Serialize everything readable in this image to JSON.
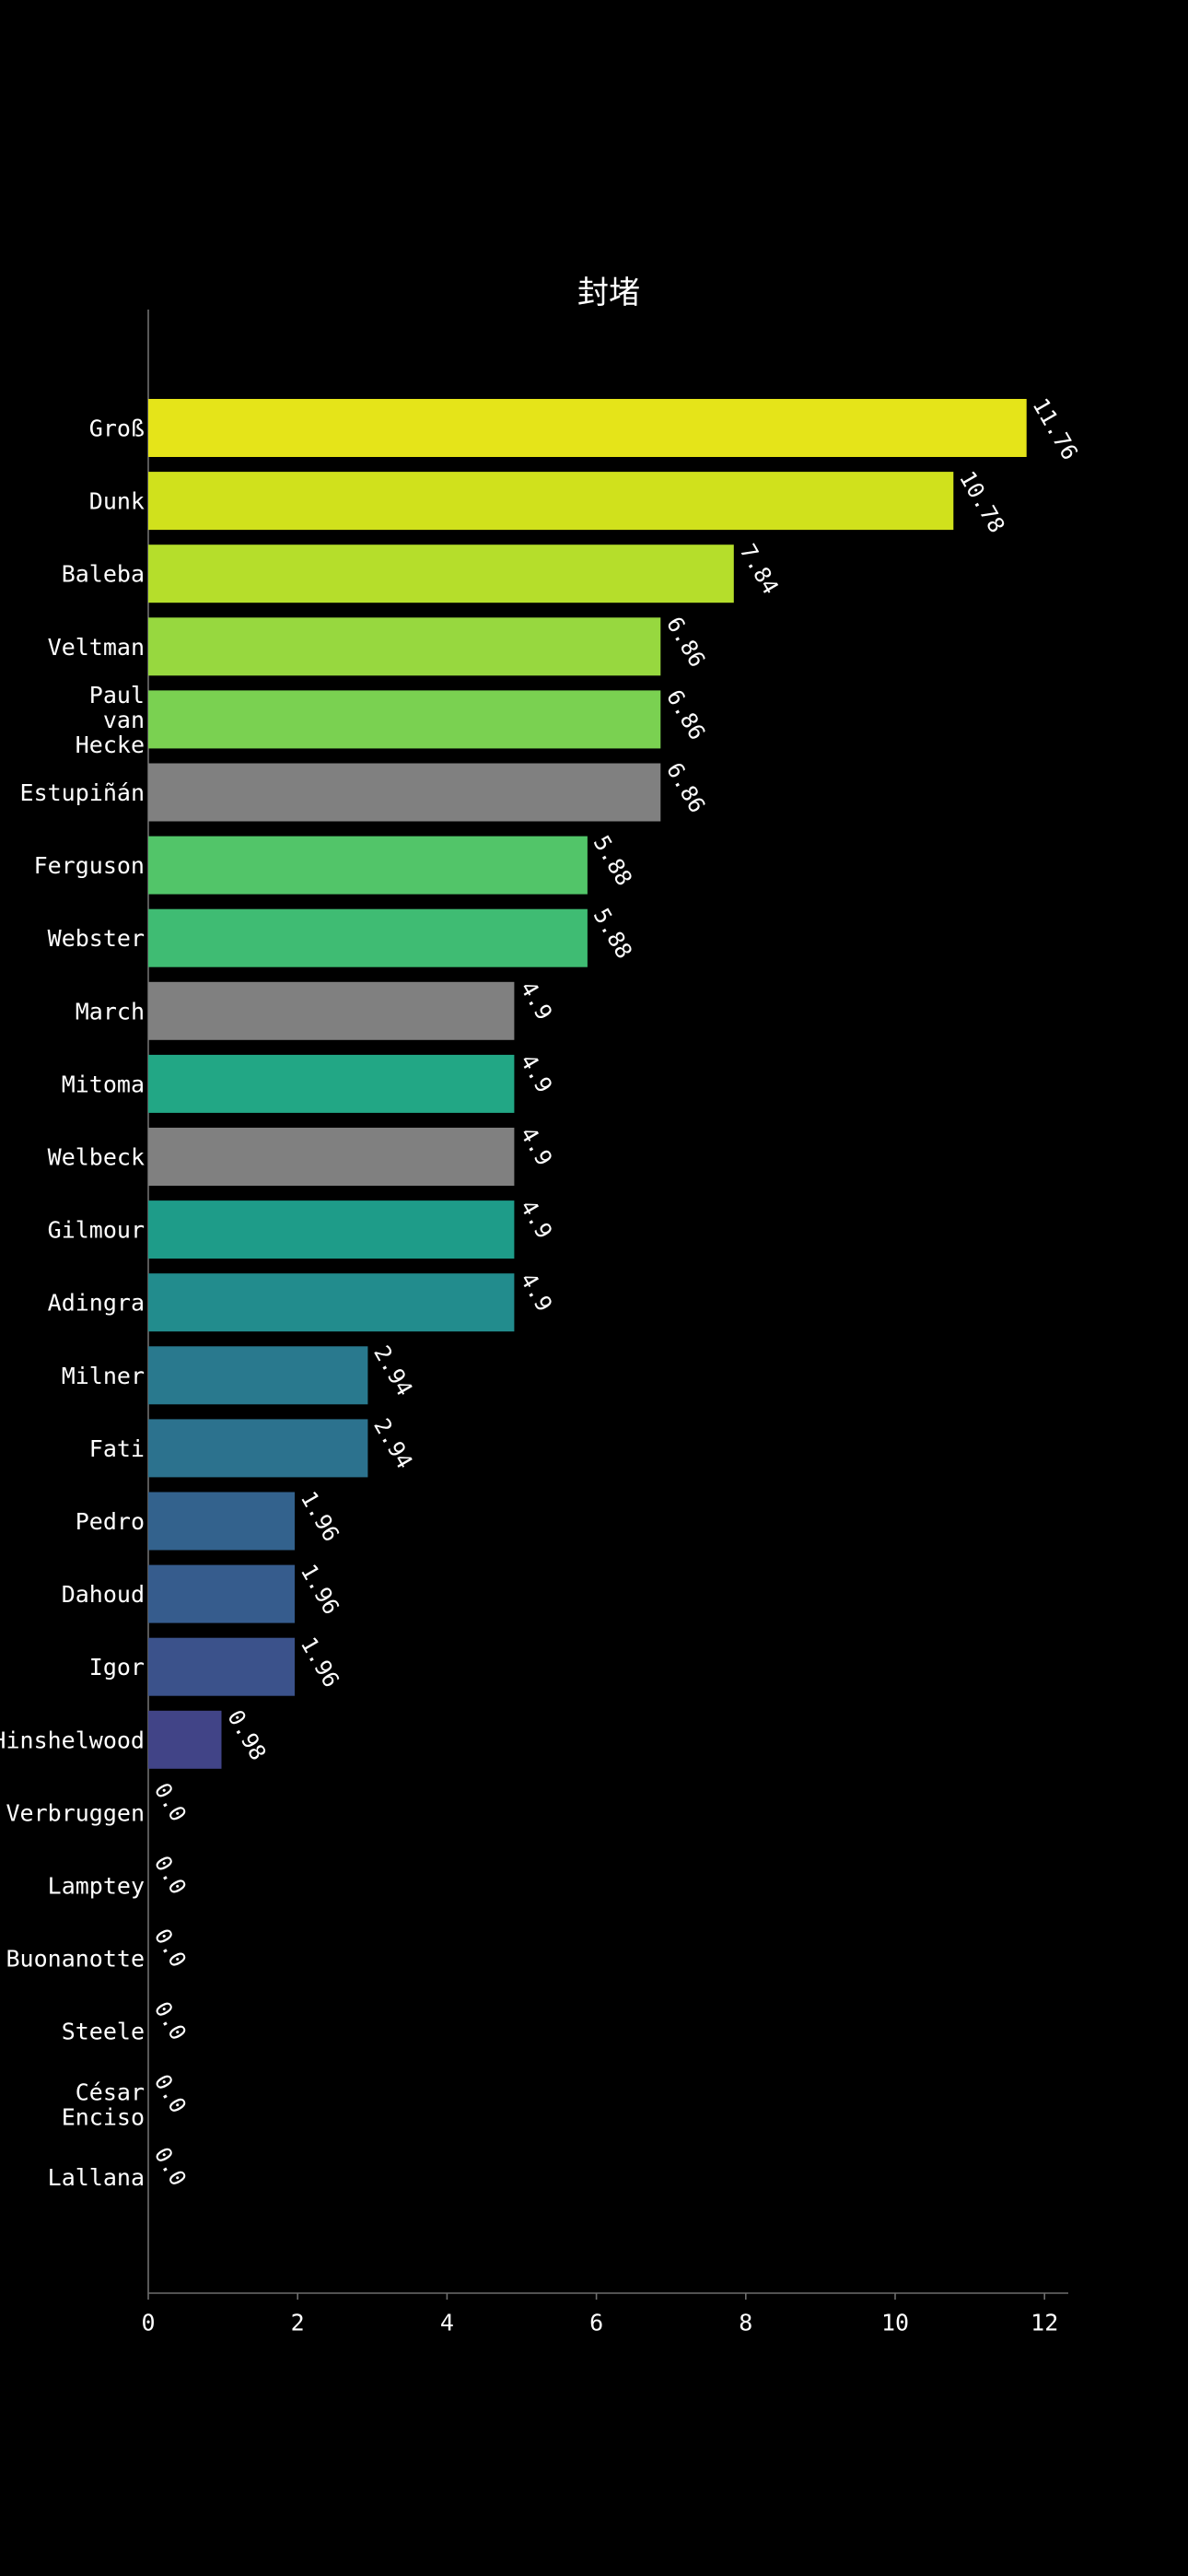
{
  "chart_data": {
    "type": "bar",
    "orientation": "horizontal",
    "title": "封堵",
    "xlabel": "",
    "ylabel": "",
    "xlim": [
      0,
      12.35
    ],
    "xticks": [
      0,
      2,
      4,
      6,
      8,
      10,
      12
    ],
    "grid": false,
    "legend": "none",
    "background": "#000000",
    "categories": [
      "Groß",
      "Dunk",
      "Baleba",
      "Veltman",
      "Paul\nvan\nHecke",
      "Estupiñán",
      "Ferguson",
      "Webster",
      "March",
      "Mitoma",
      "Welbeck",
      "Gilmour",
      "Adingra",
      "Milner",
      "Fati",
      "Pedro",
      "Dahoud",
      "Igor",
      "Hinshelwood",
      "Verbruggen",
      "Lamptey",
      "Buonanotte",
      "Steele",
      "César\nEnciso",
      "Lallana"
    ],
    "values": [
      11.76,
      10.78,
      7.84,
      6.86,
      6.86,
      6.86,
      5.88,
      5.88,
      4.9,
      4.9,
      4.9,
      4.9,
      4.9,
      2.94,
      2.94,
      1.96,
      1.96,
      1.96,
      0.98,
      0.0,
      0.0,
      0.0,
      0.0,
      0.0,
      0.0
    ],
    "value_labels": [
      "11.76",
      "10.78",
      "7.84",
      "6.86",
      "6.86",
      "6.86",
      "5.88",
      "5.88",
      "4.9",
      "4.9",
      "4.9",
      "4.9",
      "4.9",
      "2.94",
      "2.94",
      "1.96",
      "1.96",
      "1.96",
      "0.98",
      "0.0",
      "0.0",
      "0.0",
      "0.0",
      "0.0",
      "0.0"
    ],
    "colors": [
      "#e5e419",
      "#d0e11c",
      "#b5de2b",
      "#97d83f",
      "#7ad151",
      "#808080",
      "#52c569",
      "#3fbc73",
      "#808080",
      "#22a785",
      "#808080",
      "#1e9c89",
      "#228c8d",
      "#29798e",
      "#2c728e",
      "#33628d",
      "#365c8d",
      "#3b528b",
      "#414487",
      "#482878",
      "#471365",
      "#440154",
      "#440154",
      "#440154",
      "#440154"
    ]
  }
}
